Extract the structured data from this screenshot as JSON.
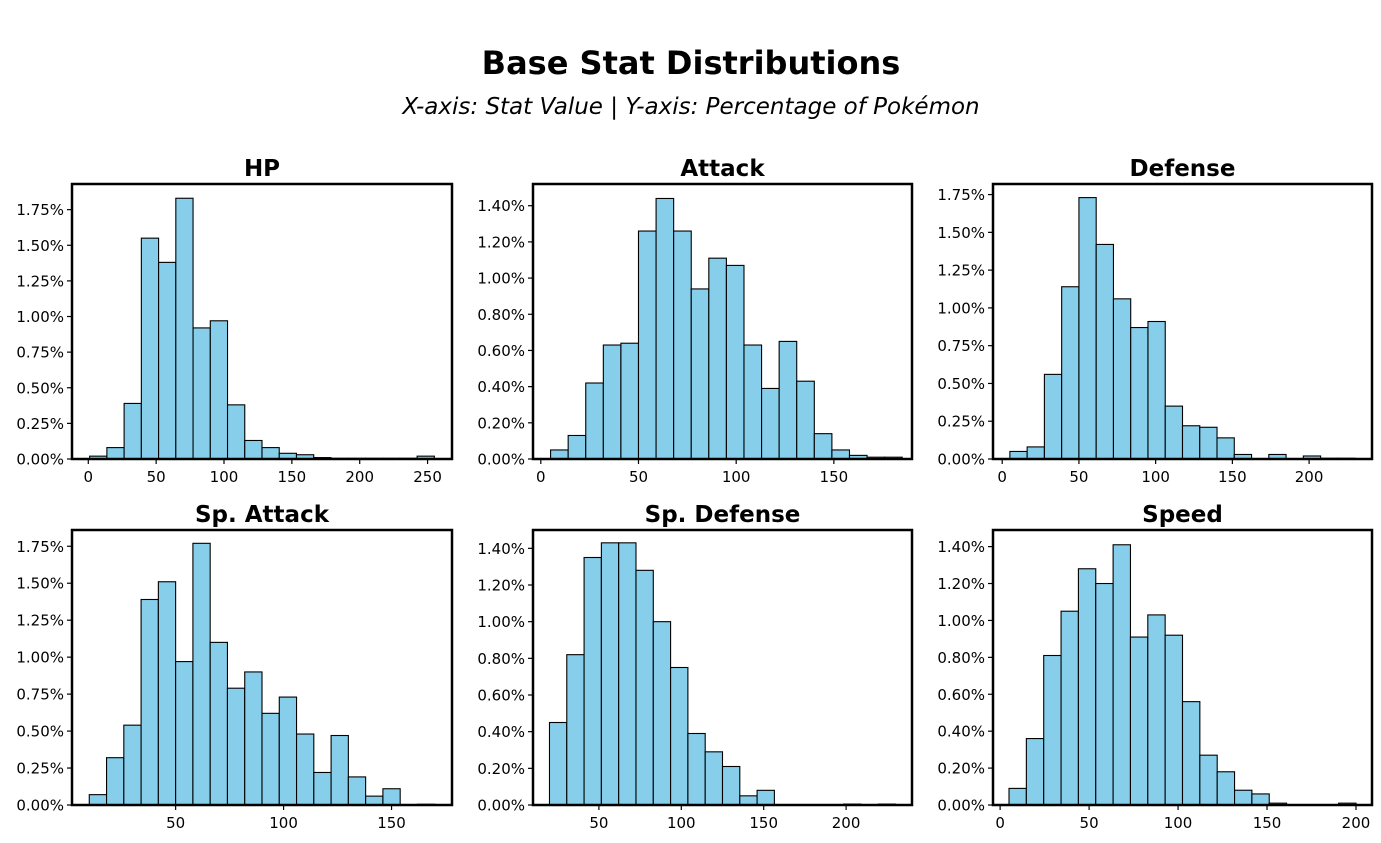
{
  "figure": {
    "title": "Base Stat Distributions",
    "subtitle": "X-axis: Stat Value | Y-axis: Percentage of Pokémon",
    "bar_color": "#87ceeb",
    "edge_color": "#000000"
  },
  "chart_data": [
    {
      "type": "bar",
      "title": "HP",
      "xlabel": "",
      "ylabel": "",
      "bin_start": 1,
      "bin_width": 12.7,
      "values": [
        0.02,
        0.08,
        0.39,
        1.55,
        1.38,
        1.83,
        0.92,
        0.97,
        0.38,
        0.13,
        0.08,
        0.04,
        0.03,
        0.01,
        0.005,
        0.005,
        0.005,
        0.005,
        0.005,
        0.02
      ],
      "xlim": [
        -12,
        268
      ],
      "xticks": [
        0,
        50,
        100,
        150,
        200,
        250
      ],
      "ylim": [
        0,
        1.93
      ],
      "yticks": [
        0,
        0.25,
        0.5,
        0.75,
        1.0,
        1.25,
        1.5,
        1.75
      ],
      "ytick_labels": [
        "0.00%",
        "0.25%",
        "0.50%",
        "0.75%",
        "1.00%",
        "1.25%",
        "1.50%",
        "1.75%"
      ]
    },
    {
      "type": "bar",
      "title": "Attack",
      "xlabel": "",
      "ylabel": "",
      "bin_start": 5,
      "bin_width": 9,
      "values": [
        0.05,
        0.13,
        0.42,
        0.63,
        0.64,
        1.26,
        1.44,
        1.26,
        0.94,
        1.11,
        1.07,
        0.63,
        0.39,
        0.65,
        0.43,
        0.14,
        0.05,
        0.02,
        0.01,
        0.01
      ],
      "xlim": [
        -4,
        190
      ],
      "xticks": [
        0,
        50,
        100,
        150
      ],
      "ylim": [
        0,
        1.52
      ],
      "yticks": [
        0,
        0.2,
        0.4,
        0.6,
        0.8,
        1.0,
        1.2,
        1.4
      ],
      "ytick_labels": [
        "0.00%",
        "0.20%",
        "0.40%",
        "0.60%",
        "0.80%",
        "1.00%",
        "1.20%",
        "1.40%"
      ]
    },
    {
      "type": "bar",
      "title": "Defense",
      "xlabel": "",
      "ylabel": "",
      "bin_start": 5,
      "bin_width": 11.25,
      "values": [
        0.05,
        0.08,
        0.56,
        1.14,
        1.73,
        1.42,
        1.06,
        0.87,
        0.91,
        0.35,
        0.22,
        0.21,
        0.14,
        0.03,
        0.0,
        0.03,
        0.0,
        0.02,
        0.005,
        0.005
      ],
      "xlim": [
        -6,
        241
      ],
      "xticks": [
        0,
        50,
        100,
        150,
        200
      ],
      "ylim": [
        0,
        1.82
      ],
      "yticks": [
        0,
        0.25,
        0.5,
        0.75,
        1.0,
        1.25,
        1.5,
        1.75
      ],
      "ytick_labels": [
        "0.00%",
        "0.25%",
        "0.50%",
        "0.75%",
        "1.00%",
        "1.25%",
        "1.50%",
        "1.75%"
      ]
    },
    {
      "type": "bar",
      "title": "Sp. Attack",
      "xlabel": "",
      "ylabel": "",
      "bin_start": 10,
      "bin_width": 8,
      "values": [
        0.07,
        0.32,
        0.54,
        1.39,
        1.51,
        0.97,
        1.77,
        1.1,
        0.79,
        0.9,
        0.62,
        0.73,
        0.48,
        0.22,
        0.47,
        0.19,
        0.06,
        0.11,
        0.0,
        0.005
      ],
      "xlim": [
        2,
        178
      ],
      "xticks": [
        50,
        100,
        150
      ],
      "ylim": [
        0,
        1.86
      ],
      "yticks": [
        0,
        0.25,
        0.5,
        0.75,
        1.0,
        1.25,
        1.5,
        1.75
      ],
      "ytick_labels": [
        "0.00%",
        "0.25%",
        "0.50%",
        "0.75%",
        "1.00%",
        "1.25%",
        "1.50%",
        "1.75%"
      ]
    },
    {
      "type": "bar",
      "title": "Sp. Defense",
      "xlabel": "",
      "ylabel": "",
      "bin_start": 20,
      "bin_width": 10.5,
      "values": [
        0.45,
        0.82,
        1.35,
        1.43,
        1.43,
        1.28,
        1.0,
        0.75,
        0.39,
        0.29,
        0.21,
        0.05,
        0.08,
        0.0,
        0.0,
        0.0,
        0.0,
        0.005,
        0.0,
        0.005
      ],
      "xlim": [
        10,
        240
      ],
      "xticks": [
        50,
        100,
        150,
        200
      ],
      "ylim": [
        0,
        1.5
      ],
      "yticks": [
        0,
        0.2,
        0.4,
        0.6,
        0.8,
        1.0,
        1.2,
        1.4
      ],
      "ytick_labels": [
        "0.00%",
        "0.20%",
        "0.40%",
        "0.60%",
        "0.80%",
        "1.00%",
        "1.20%",
        "1.40%"
      ]
    },
    {
      "type": "bar",
      "title": "Speed",
      "xlabel": "",
      "ylabel": "",
      "bin_start": 5,
      "bin_width": 9.75,
      "values": [
        0.09,
        0.36,
        0.81,
        1.05,
        1.28,
        1.2,
        1.41,
        0.91,
        1.03,
        0.92,
        0.56,
        0.27,
        0.18,
        0.08,
        0.06,
        0.01,
        0.0,
        0.0,
        0.0,
        0.01
      ],
      "xlim": [
        -4,
        209
      ],
      "xticks": [
        0,
        50,
        100,
        150,
        200
      ],
      "ylim": [
        0,
        1.49
      ],
      "yticks": [
        0,
        0.2,
        0.4,
        0.6,
        0.8,
        1.0,
        1.2,
        1.4
      ],
      "ytick_labels": [
        "0.00%",
        "0.20%",
        "0.40%",
        "0.60%",
        "0.80%",
        "1.00%",
        "1.20%",
        "1.40%"
      ]
    }
  ]
}
